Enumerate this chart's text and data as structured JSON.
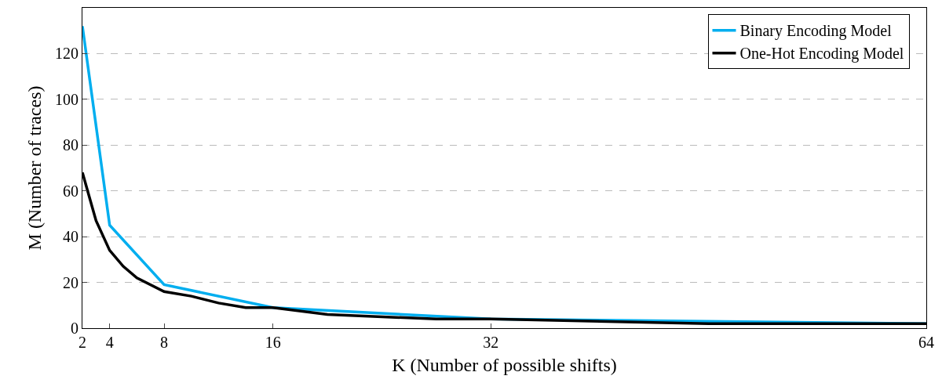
{
  "chart_data": {
    "type": "line",
    "xlabel": "K (Number of possible shifts)",
    "ylabel": "M (Number of traces)",
    "xlim": [
      2,
      64
    ],
    "xticks": [
      2,
      4,
      8,
      16,
      32,
      64
    ],
    "ylim": [
      0,
      140
    ],
    "yticks": [
      0,
      20,
      40,
      60,
      80,
      100,
      120
    ],
    "grid": "y",
    "legend": "top right",
    "marker": "none",
    "line_style": "solid",
    "series": [
      {
        "name": "Binary Encoding Model",
        "color": "#00aeef",
        "x": [
          2,
          4,
          8,
          16,
          32,
          64
        ],
        "values": [
          132,
          45,
          19,
          9,
          4,
          2
        ]
      },
      {
        "name": "One-Hot Encoding Model",
        "color": "#000000",
        "x": [
          2,
          3,
          4,
          5,
          6,
          8,
          10,
          12,
          14,
          16,
          20,
          28,
          32,
          48,
          64
        ],
        "values": [
          68,
          47,
          34,
          27,
          22,
          16,
          14,
          11,
          9,
          9,
          6,
          4,
          4,
          2,
          2
        ]
      }
    ]
  }
}
